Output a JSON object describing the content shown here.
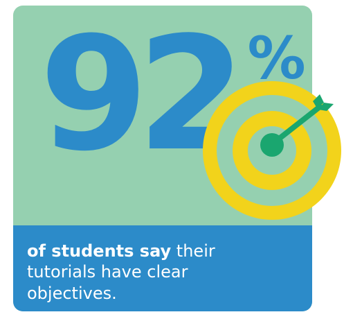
{
  "stat": {
    "value": "92",
    "unit": "%"
  },
  "caption": {
    "emphasis": "of students say",
    "rest": " their tutorials have clear objectives."
  },
  "icon": {
    "name": "target-with-arrow-icon"
  },
  "colors": {
    "top_background": "#95d0b0",
    "bottom_background": "#2c8bc9",
    "stat_text": "#2c8bc9",
    "caption_text": "#ffffff",
    "target_ring": "#f2d31b",
    "arrow": "#1aa66f"
  }
}
